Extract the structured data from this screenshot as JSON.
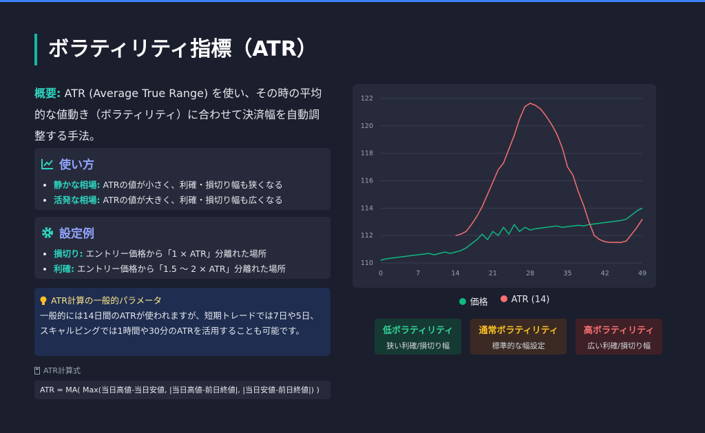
{
  "header": {
    "title": "ボラティリティ指標（ATR）"
  },
  "overview": {
    "label": "概要:",
    "text": "ATR (Average True Range) を使い、その時の平均的な値動き（ボラティリティ）に合わせて決済幅を自動調整する手法。"
  },
  "usage": {
    "title": "使い方",
    "items": [
      {
        "label": "静かな相場:",
        "text": "ATRの値が小さく、利確・損切り幅も狭くなる"
      },
      {
        "label": "活発な相場:",
        "text": "ATRの値が大きく、利確・損切り幅も広くなる"
      }
    ]
  },
  "settings": {
    "title": "設定例",
    "items": [
      {
        "label": "損切り:",
        "text": "エントリー価格から「1 × ATR」分離れた場所"
      },
      {
        "label": "利確:",
        "text": "エントリー価格から「1.5 〜 2 × ATR」分離れた場所"
      }
    ]
  },
  "tip": {
    "title": "ATR計算の一般的パラメータ",
    "text": "一般的には14日間のATRが使われますが、短期トレードでは7日や5日、スキャルピングでは1時間や30分のATRを活用することも可能です。"
  },
  "formula": {
    "label": "ATR計算式",
    "text": "ATR = MA( Max(当日高値-当日安値, |当日高値-前日終値|, |当日安値-前日終値|) )"
  },
  "chart_data": {
    "type": "line",
    "grid": true,
    "legend": "bottom",
    "x": [
      0,
      1,
      2,
      3,
      4,
      5,
      6,
      7,
      8,
      9,
      10,
      11,
      12,
      13,
      14,
      15,
      16,
      17,
      18,
      19,
      20,
      21,
      22,
      23,
      24,
      25,
      26,
      27,
      28,
      29,
      30,
      31,
      32,
      33,
      34,
      35,
      36,
      37,
      38,
      39,
      40,
      41,
      42,
      43,
      44,
      45,
      46,
      47,
      48,
      49
    ],
    "xlim": [
      0,
      49
    ],
    "xticks": [
      0,
      7,
      14,
      21,
      28,
      35,
      42,
      49
    ],
    "ylim": [
      110,
      122
    ],
    "yticks": [
      110,
      112,
      114,
      116,
      118,
      120,
      122
    ],
    "series": [
      {
        "name": "価格",
        "color": "#10b981",
        "values": [
          110.2,
          110.3,
          110.35,
          110.4,
          110.45,
          110.5,
          110.55,
          110.6,
          110.65,
          110.7,
          110.6,
          110.7,
          110.8,
          110.7,
          110.8,
          110.9,
          111.1,
          111.4,
          111.7,
          112.1,
          111.7,
          112.3,
          112.0,
          112.6,
          112.1,
          112.8,
          112.3,
          112.6,
          112.4,
          112.5,
          112.55,
          112.6,
          112.65,
          112.7,
          112.6,
          112.65,
          112.7,
          112.75,
          112.7,
          112.8,
          112.85,
          112.9,
          112.95,
          113.0,
          113.05,
          113.1,
          113.2,
          113.5,
          113.8,
          114.0
        ]
      },
      {
        "name": "ATR (14)",
        "color": "#f87171",
        "values": [
          null,
          null,
          null,
          null,
          null,
          null,
          null,
          null,
          null,
          null,
          null,
          null,
          null,
          null,
          112.0,
          112.1,
          112.3,
          112.8,
          113.4,
          114.1,
          115.0,
          115.9,
          116.8,
          117.3,
          118.3,
          119.3,
          120.5,
          121.4,
          121.65,
          121.5,
          121.2,
          120.7,
          120.1,
          119.4,
          118.4,
          117.0,
          116.4,
          115.2,
          114.2,
          113.0,
          112.0,
          111.7,
          111.55,
          111.5,
          111.5,
          111.5,
          111.6,
          112.1,
          112.6,
          113.2
        ]
      }
    ]
  },
  "badges": [
    {
      "title": "低ボラティリティ",
      "subtitle": "狭い利確/損切り幅",
      "color": "#34d399"
    },
    {
      "title": "通常ボラティリティ",
      "subtitle": "標準的な幅設定",
      "color": "#fbbf24"
    },
    {
      "title": "高ボラティリティ",
      "subtitle": "広い利確/損切り幅",
      "color": "#f87171"
    }
  ]
}
